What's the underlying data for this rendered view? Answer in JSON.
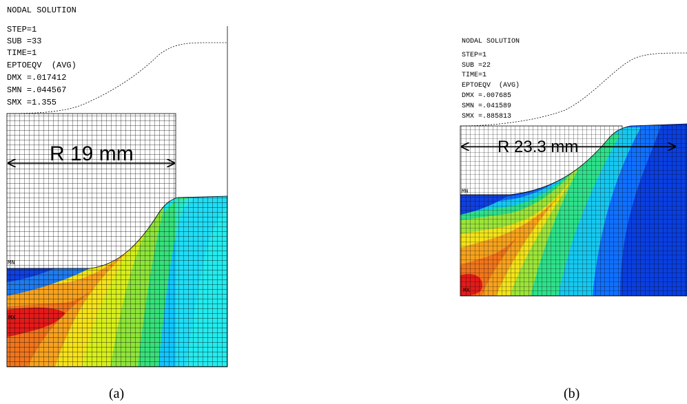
{
  "panels": [
    {
      "header": "NODAL SOLUTION",
      "lines": [
        "STEP=1",
        "SUB =33",
        "TIME=1",
        "EPTOEQV  (AVG)",
        "DMX =.017412",
        "SMN =.044567",
        "SMX =1.355"
      ],
      "dimension": "R 19 mm",
      "min_label": "MN",
      "max_label": "MX",
      "caption": "(a)"
    },
    {
      "header": "NODAL SOLUTION",
      "lines": [
        "STEP=1",
        "SUB =22",
        "TIME=1",
        "EPTOEQV  (AVG)",
        "DMX =.007685",
        "SMN =.041589",
        "SMX =.885813"
      ],
      "dimension": "R 23.3 mm",
      "min_label": "MN",
      "max_label": "MX",
      "caption": "(b)"
    }
  ]
}
